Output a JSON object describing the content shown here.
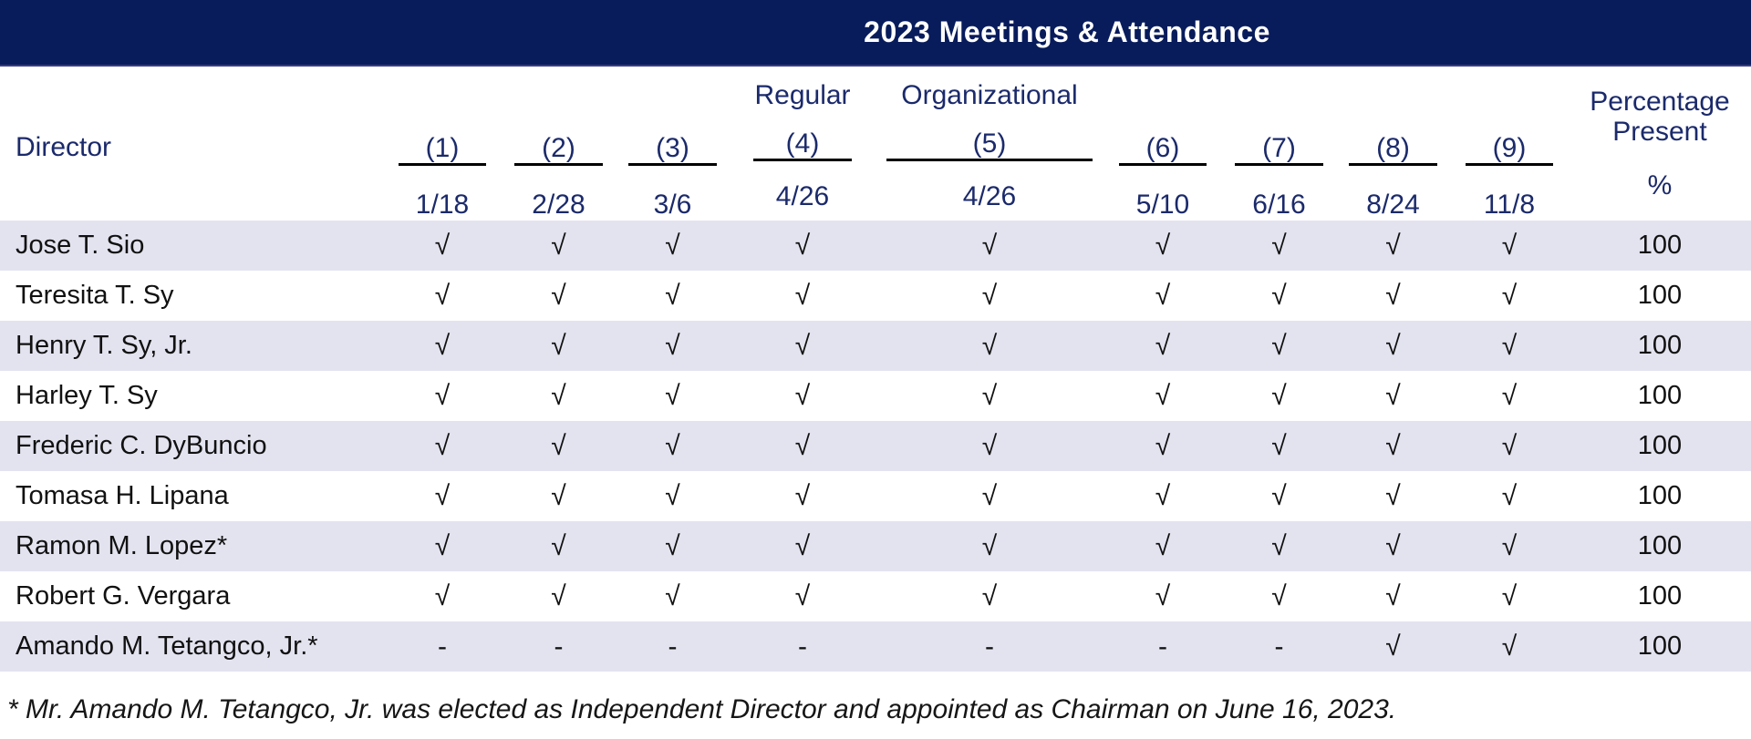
{
  "title_bar": {
    "title": "2023 Meetings & Attendance"
  },
  "table": {
    "director_header": "Director",
    "columns": [
      {
        "top": "",
        "num": "(1)",
        "date": "1/18"
      },
      {
        "top": "",
        "num": "(2)",
        "date": "2/28"
      },
      {
        "top": "",
        "num": "(3)",
        "date": "3/6"
      },
      {
        "top": "Regular",
        "num": "(4)",
        "date": "4/26"
      },
      {
        "top": "Organizational",
        "num": "(5)",
        "date": "4/26"
      },
      {
        "top": "",
        "num": "(6)",
        "date": "5/10"
      },
      {
        "top": "",
        "num": "(7)",
        "date": "6/16"
      },
      {
        "top": "",
        "num": "(8)",
        "date": "8/24"
      },
      {
        "top": "",
        "num": "(9)",
        "date": "11/8"
      }
    ],
    "percentage_header": {
      "line1": "Percentage",
      "line2": "Present",
      "symbol": "%"
    },
    "rows": [
      {
        "director": "Jose T. Sio",
        "attendance": [
          "√",
          "√",
          "√",
          "√",
          "√",
          "√",
          "√",
          "√",
          "√"
        ],
        "percentage": "100"
      },
      {
        "director": "Teresita T. Sy",
        "attendance": [
          "√",
          "√",
          "√",
          "√",
          "√",
          "√",
          "√",
          "√",
          "√"
        ],
        "percentage": "100"
      },
      {
        "director": "Henry T. Sy, Jr.",
        "attendance": [
          "√",
          "√",
          "√",
          "√",
          "√",
          "√",
          "√",
          "√",
          "√"
        ],
        "percentage": "100"
      },
      {
        "director": "Harley T. Sy",
        "attendance": [
          "√",
          "√",
          "√",
          "√",
          "√",
          "√",
          "√",
          "√",
          "√"
        ],
        "percentage": "100"
      },
      {
        "director": "Frederic C. DyBuncio",
        "attendance": [
          "√",
          "√",
          "√",
          "√",
          "√",
          "√",
          "√",
          "√",
          "√"
        ],
        "percentage": "100"
      },
      {
        "director": "Tomasa H. Lipana",
        "attendance": [
          "√",
          "√",
          "√",
          "√",
          "√",
          "√",
          "√",
          "√",
          "√"
        ],
        "percentage": "100"
      },
      {
        "director": "Ramon M. Lopez*",
        "attendance": [
          "√",
          "√",
          "√",
          "√",
          "√",
          "√",
          "√",
          "√",
          "√"
        ],
        "percentage": "100"
      },
      {
        "director": "Robert G. Vergara",
        "attendance": [
          "√",
          "√",
          "√",
          "√",
          "√",
          "√",
          "√",
          "√",
          "√"
        ],
        "percentage": "100"
      },
      {
        "director": "Amando M. Tetangco, Jr.*",
        "attendance": [
          "-",
          "-",
          "-",
          "-",
          "-",
          "-",
          "-",
          "√",
          "√"
        ],
        "percentage": "100"
      }
    ]
  },
  "footnote": "* Mr. Amando M. Tetangco, Jr. was elected as Independent Director and appointed as Chairman on June 16, 2023.",
  "symbols": {
    "present": "√",
    "absent": "-"
  },
  "colors": {
    "navy_bar": "#081c5c",
    "header_text": "#1b2a6b",
    "row_stripe": "#e3e3f0",
    "row_text": "#111111",
    "underline": "#000000",
    "title_text": "#ffffff"
  }
}
